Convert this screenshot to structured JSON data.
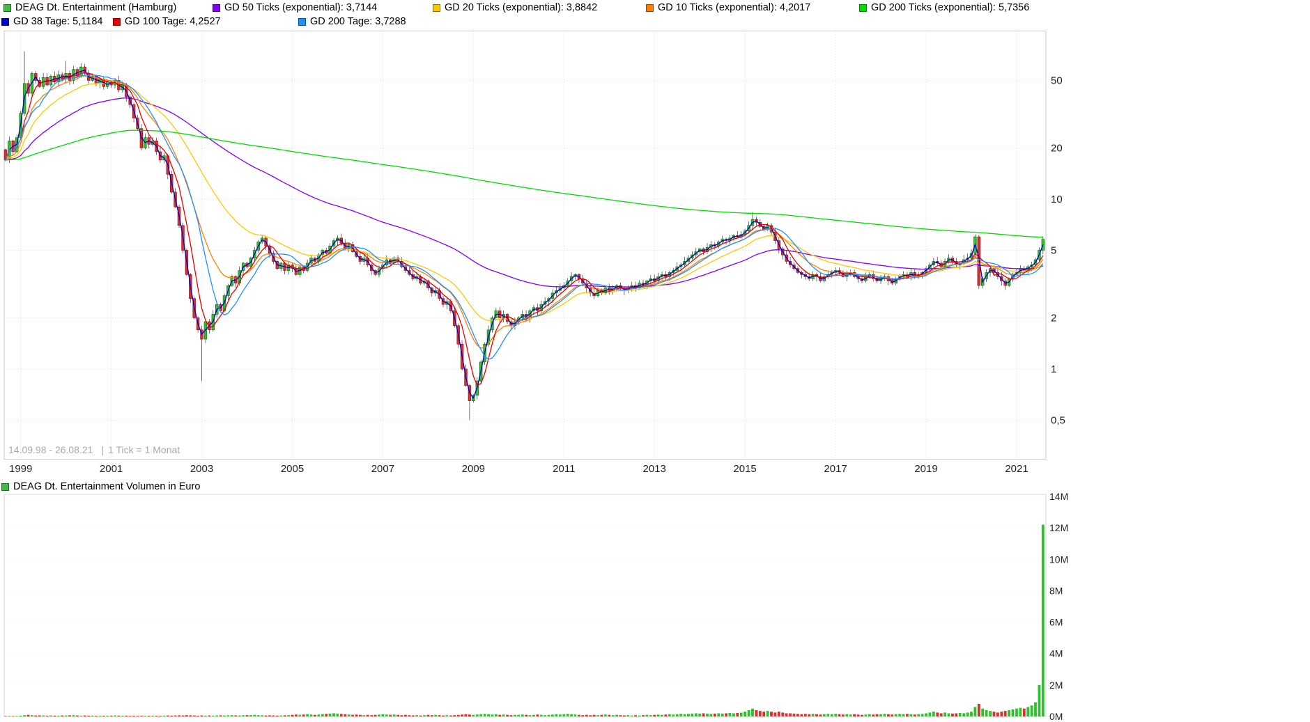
{
  "legend": {
    "items": [
      {
        "label": "DEAG Dt. Entertainment (Hamburg)",
        "color": "#44BB44"
      },
      {
        "label": "GD 50 Ticks (exponential): 3,7144",
        "color": "#7F00FF"
      },
      {
        "label": "GD 20 Ticks (exponential): 3,8842",
        "color": "#FFC800"
      },
      {
        "label": "GD 10 Ticks (exponential): 4,2017",
        "color": "#FF8000"
      },
      {
        "label": "GD 200 Ticks (exponential): 5,7356",
        "color": "#00DC00"
      },
      {
        "label": "GD 38 Tage: 5,1184",
        "color": "#0000CC"
      },
      {
        "label": "GD 100 Tage: 4,2527",
        "color": "#E60000"
      },
      {
        "label": "GD 200 Tage: 3,7288",
        "color": "#1E90FF"
      }
    ]
  },
  "volume_legend": {
    "label": "DEAG Dt. Entertainment Volumen in Euro",
    "color": "#44BB44"
  },
  "footer": {
    "range_text": "14.09.98 - 26.08.21",
    "separator": "|",
    "tick_text": "1 Tick = 1 Monat"
  },
  "chart_data": [
    {
      "type": "candlestick",
      "title": "DEAG Dt. Entertainment (Hamburg)",
      "scale": "log",
      "interval": "1 Tick = 1 Monat",
      "period_start": "1998-09",
      "period_end": "2021-08",
      "up_color": "#2FBF2F",
      "down_color": "#D93030",
      "y_axis_ticks": [
        "50",
        "20",
        "10",
        "5",
        "2",
        "1",
        "0,5"
      ],
      "y_tick_values": [
        50,
        20,
        10,
        5,
        2,
        1,
        0.5
      ],
      "x_tick_years": [
        1999,
        2001,
        2003,
        2005,
        2007,
        2009,
        2011,
        2013,
        2015,
        2017,
        2019,
        2021
      ],
      "closes": [
        17,
        22,
        19,
        23,
        32,
        48,
        42,
        55,
        50,
        46,
        52,
        47,
        53,
        49,
        54,
        51,
        55,
        50,
        58,
        53,
        60,
        55,
        50,
        53,
        48,
        51,
        46,
        49,
        47,
        50,
        44,
        47,
        40,
        36,
        30,
        26,
        20,
        23,
        21,
        22,
        19,
        17,
        18,
        14,
        11,
        9,
        7,
        5,
        3.6,
        2.6,
        2.0,
        1.7,
        1.5,
        1.9,
        1.7,
        2.1,
        2.4,
        2.2,
        2.7,
        3.1,
        3.5,
        3.2,
        3.8,
        4.2,
        4.0,
        4.5,
        5.0,
        5.6,
        5.9,
        5.3,
        4.8,
        4.3,
        3.9,
        4.2,
        3.8,
        4.1,
        3.9,
        3.6,
        4.0,
        3.8,
        4.2,
        4.5,
        4.3,
        4.7,
        5.0,
        4.8,
        5.3,
        5.7,
        5.9,
        5.5,
        5.1,
        5.4,
        4.9,
        4.6,
        4.3,
        4.5,
        4.1,
        3.8,
        3.6,
        3.9,
        4.1,
        4.4,
        4.2,
        4.5,
        4.3,
        4.0,
        3.8,
        3.6,
        3.4,
        3.5,
        3.2,
        3.3,
        3.0,
        2.8,
        2.9,
        2.6,
        2.4,
        2.5,
        2.2,
        1.8,
        1.4,
        1.0,
        0.8,
        0.65,
        0.7,
        0.85,
        1.1,
        1.4,
        1.7,
        2.0,
        2.2,
        2.0,
        2.1,
        1.9,
        1.8,
        1.9,
        2.0,
        2.1,
        2.0,
        2.2,
        2.3,
        2.2,
        2.4,
        2.5,
        2.6,
        2.8,
        2.9,
        3.0,
        3.1,
        3.3,
        3.5,
        3.6,
        3.4,
        3.2,
        3.0,
        2.8,
        2.7,
        2.9,
        2.8,
        3.0,
        2.9,
        3.0,
        3.1,
        3.0,
        2.9,
        3.0,
        3.1,
        3.0,
        3.2,
        3.1,
        3.3,
        3.4,
        3.3,
        3.5,
        3.6,
        3.5,
        3.7,
        3.8,
        4.0,
        4.1,
        4.3,
        4.5,
        4.7,
        4.9,
        5.1,
        4.9,
        5.2,
        5.4,
        5.3,
        5.6,
        5.8,
        5.7,
        5.9,
        6.1,
        6.0,
        6.2,
        6.5,
        7.0,
        7.6,
        7.3,
        6.9,
        6.6,
        7.0,
        6.4,
        5.7,
        5.1,
        4.7,
        4.3,
        4.1,
        3.9,
        3.7,
        3.6,
        3.5,
        3.4,
        3.6,
        3.5,
        3.3,
        3.5,
        3.6,
        3.7,
        3.8,
        3.7,
        3.5,
        3.6,
        3.7,
        3.5,
        3.4,
        3.3,
        3.5,
        3.6,
        3.4,
        3.3,
        3.4,
        3.5,
        3.3,
        3.2,
        3.4,
        3.5,
        3.6,
        3.5,
        3.7,
        3.5,
        3.6,
        3.7,
        3.9,
        4.1,
        4.3,
        4.2,
        4.0,
        4.3,
        4.5,
        4.3,
        4.1,
        4.2,
        4.4,
        4.5,
        4.8,
        6.0,
        3.1,
        3.4,
        3.7,
        3.9,
        3.7,
        3.5,
        3.3,
        3.1,
        3.4,
        3.6,
        3.7,
        3.9,
        3.8,
        4.0,
        4.1,
        4.4,
        5.0,
        5.8
      ],
      "special_highs": {
        "5": 74,
        "16": 65,
        "198": 8.4
      },
      "special_lows": {
        "52": 0.85,
        "123": 0.5
      },
      "overlays": [
        {
          "name": "GD 50 Ticks (exponential)",
          "value_label": "3,7144",
          "color": "#7F00FF",
          "kind": "ema",
          "period": 50
        },
        {
          "name": "GD 20 Ticks (exponential)",
          "value_label": "3,8842",
          "color": "#FFC800",
          "kind": "ema",
          "period": 20
        },
        {
          "name": "GD 10 Ticks (exponential)",
          "value_label": "4,2017",
          "color": "#FF8000",
          "kind": "ema",
          "period": 10
        },
        {
          "name": "GD 200 Ticks (exponential)",
          "value_label": "5,7356",
          "color": "#00DC00",
          "kind": "ema",
          "period": 200
        },
        {
          "name": "GD 38 Tage",
          "value_label": "5,1184",
          "color": "#0000CC",
          "kind": "sma",
          "period": 2
        },
        {
          "name": "GD 100 Tage",
          "value_label": "4,2527",
          "color": "#E60000",
          "kind": "sma",
          "period": 5
        },
        {
          "name": "GD 200 Tage",
          "value_label": "3,7288",
          "color": "#1E90FF",
          "kind": "sma",
          "period": 10
        }
      ]
    },
    {
      "type": "bar",
      "title": "DEAG Dt. Entertainment Volumen in Euro",
      "y_axis_ticks": [
        "14M",
        "12M",
        "10M",
        "8M",
        "6M",
        "4M",
        "2M",
        "0M"
      ],
      "y_tick_values": [
        14,
        12,
        10,
        8,
        6,
        4,
        2,
        0
      ],
      "values_millions": [
        0.02,
        0.03,
        0.02,
        0.03,
        0.05,
        0.08,
        0.1,
        0.08,
        0.06,
        0.07,
        0.06,
        0.05,
        0.06,
        0.05,
        0.05,
        0.06,
        0.06,
        0.07,
        0.08,
        0.06,
        0.05,
        0.06,
        0.05,
        0.05,
        0.04,
        0.05,
        0.04,
        0.05,
        0.05,
        0.06,
        0.05,
        0.04,
        0.05,
        0.04,
        0.05,
        0.04,
        0.05,
        0.04,
        0.04,
        0.05,
        0.05,
        0.04,
        0.05,
        0.06,
        0.05,
        0.06,
        0.07,
        0.06,
        0.08,
        0.07,
        0.06,
        0.05,
        0.06,
        0.05,
        0.06,
        0.05,
        0.06,
        0.07,
        0.06,
        0.07,
        0.08,
        0.07,
        0.06,
        0.07,
        0.08,
        0.09,
        0.1,
        0.08,
        0.07,
        0.06,
        0.07,
        0.06,
        0.05,
        0.06,
        0.07,
        0.08,
        0.1,
        0.12,
        0.1,
        0.12,
        0.14,
        0.12,
        0.1,
        0.12,
        0.14,
        0.16,
        0.18,
        0.2,
        0.18,
        0.16,
        0.14,
        0.12,
        0.1,
        0.12,
        0.1,
        0.08,
        0.1,
        0.08,
        0.1,
        0.12,
        0.14,
        0.12,
        0.1,
        0.12,
        0.1,
        0.08,
        0.1,
        0.08,
        0.06,
        0.08,
        0.06,
        0.08,
        0.1,
        0.08,
        0.1,
        0.08,
        0.06,
        0.08,
        0.06,
        0.08,
        0.1,
        0.12,
        0.14,
        0.12,
        0.1,
        0.12,
        0.14,
        0.16,
        0.14,
        0.12,
        0.14,
        0.1,
        0.12,
        0.1,
        0.08,
        0.1,
        0.1,
        0.12,
        0.1,
        0.08,
        0.1,
        0.12,
        0.1,
        0.08,
        0.1,
        0.12,
        0.14,
        0.12,
        0.14,
        0.16,
        0.14,
        0.12,
        0.1,
        0.08,
        0.1,
        0.08,
        0.1,
        0.08,
        0.1,
        0.12,
        0.1,
        0.08,
        0.1,
        0.08,
        0.06,
        0.08,
        0.06,
        0.08,
        0.06,
        0.08,
        0.1,
        0.08,
        0.1,
        0.12,
        0.1,
        0.12,
        0.14,
        0.12,
        0.14,
        0.16,
        0.14,
        0.16,
        0.18,
        0.2,
        0.18,
        0.2,
        0.18,
        0.16,
        0.18,
        0.2,
        0.18,
        0.2,
        0.22,
        0.2,
        0.22,
        0.24,
        0.3,
        0.4,
        0.5,
        0.4,
        0.35,
        0.3,
        0.35,
        0.3,
        0.25,
        0.3,
        0.25,
        0.2,
        0.2,
        0.18,
        0.16,
        0.14,
        0.16,
        0.14,
        0.16,
        0.14,
        0.12,
        0.14,
        0.16,
        0.14,
        0.16,
        0.14,
        0.12,
        0.14,
        0.12,
        0.14,
        0.12,
        0.1,
        0.12,
        0.14,
        0.12,
        0.14,
        0.14,
        0.16,
        0.14,
        0.12,
        0.14,
        0.16,
        0.14,
        0.16,
        0.14,
        0.12,
        0.14,
        0.16,
        0.2,
        0.25,
        0.3,
        0.25,
        0.2,
        0.25,
        0.2,
        0.18,
        0.2,
        0.22,
        0.2,
        0.25,
        0.3,
        0.6,
        0.8,
        0.5,
        0.4,
        0.35,
        0.3,
        0.25,
        0.3,
        0.35,
        0.4,
        0.45,
        0.5,
        0.55,
        0.5,
        0.6,
        0.7,
        0.9,
        2.0,
        12.2
      ]
    }
  ]
}
